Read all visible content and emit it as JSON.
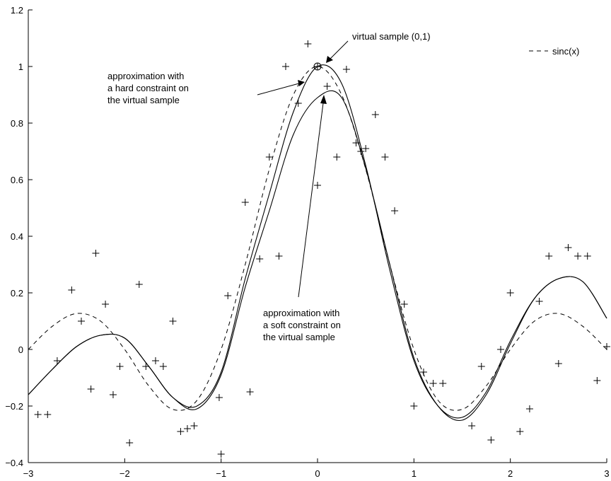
{
  "chart_data": {
    "type": "line",
    "title": "",
    "xlabel": "",
    "ylabel": "",
    "xlim": [
      -3,
      3
    ],
    "ylim": [
      -0.4,
      1.2
    ],
    "xticks": [
      -3,
      -2,
      -1,
      0,
      1,
      2,
      3
    ],
    "xtick_labels": [
      "−3",
      "−2",
      "−1",
      "0",
      "1",
      "2",
      "3"
    ],
    "yticks": [
      -0.4,
      -0.2,
      0,
      0.2,
      0.4,
      0.6,
      0.8,
      1,
      1.2
    ],
    "ytick_labels": [
      "−0.4",
      "−0.2",
      "0",
      "0.2",
      "0.4",
      "0.6",
      "0.8",
      "1",
      "1.2"
    ],
    "grid": false,
    "legend": {
      "position": "top-right",
      "label": "sinc(x)"
    },
    "series": [
      {
        "name": "sinc(x)",
        "style": "dashed",
        "x": [
          -3,
          -2.75,
          -2.5,
          -2.25,
          -2,
          -1.75,
          -1.5,
          -1.25,
          -1,
          -0.75,
          -0.5,
          -0.25,
          0,
          0.25,
          0.5,
          0.75,
          1,
          1.25,
          1.5,
          1.75,
          2,
          2.25,
          2.5,
          2.75,
          3
        ],
        "y": [
          0.0,
          0.082,
          0.127,
          0.1,
          0.0,
          -0.129,
          -0.212,
          -0.18,
          0.0,
          0.3,
          0.637,
          0.9,
          1.0,
          0.9,
          0.637,
          0.3,
          0.0,
          -0.18,
          -0.212,
          -0.129,
          0.0,
          0.1,
          0.127,
          0.082,
          0.0
        ]
      },
      {
        "style": "solid",
        "x": [
          -3,
          -2.75,
          -2.5,
          -2.25,
          -2,
          -1.75,
          -1.5,
          -1.25,
          -1,
          -0.75,
          -0.5,
          -0.25,
          0,
          0.25,
          0.5,
          0.75,
          1,
          1.25,
          1.5,
          1.75,
          2,
          2.25,
          2.5,
          2.75,
          3
        ],
        "y": [
          -0.16,
          -0.07,
          0.01,
          0.05,
          0.04,
          -0.06,
          -0.17,
          -0.2,
          -0.08,
          0.25,
          0.55,
          0.84,
          1.0,
          0.94,
          0.65,
          0.28,
          -0.04,
          -0.2,
          -0.24,
          -0.15,
          0.03,
          0.18,
          0.25,
          0.24,
          0.11
        ]
      },
      {
        "style": "solid",
        "x": [
          -3,
          -2.75,
          -2.5,
          -2.25,
          -2,
          -1.75,
          -1.5,
          -1.25,
          -1,
          -0.75,
          -0.5,
          -0.25,
          0,
          0.25,
          0.5,
          0.75,
          1,
          1.25,
          1.5,
          1.75,
          2,
          2.25,
          2.5,
          2.75,
          3
        ],
        "y": [
          -0.16,
          -0.07,
          0.01,
          0.05,
          0.04,
          -0.06,
          -0.17,
          -0.21,
          -0.09,
          0.22,
          0.49,
          0.76,
          0.89,
          0.89,
          0.64,
          0.3,
          -0.03,
          -0.2,
          -0.25,
          -0.16,
          0.02,
          0.18,
          0.25,
          0.24,
          0.11
        ]
      }
    ],
    "samples": {
      "marker": "+",
      "x": [
        -2.9,
        -2.8,
        -2.7,
        -2.55,
        -2.45,
        -2.35,
        -2.3,
        -2.2,
        -2.12,
        -2.05,
        -1.95,
        -1.85,
        -1.78,
        -1.68,
        -1.6,
        -1.5,
        -1.42,
        -1.35,
        -1.28,
        -1.02,
        -1.0,
        -0.93,
        -0.75,
        -0.7,
        -0.6,
        -0.5,
        -0.4,
        -0.33,
        -0.2,
        -0.1,
        0.0,
        0.1,
        0.2,
        0.3,
        0.4,
        0.45,
        0.5,
        0.6,
        0.7,
        0.8,
        0.9,
        1.0,
        1.1,
        1.2,
        1.3,
        1.6,
        1.7,
        1.8,
        1.9,
        2.0,
        2.1,
        2.2,
        2.3,
        2.4,
        2.5,
        2.6,
        2.7,
        2.8,
        2.9,
        3.0
      ],
      "y": [
        -0.23,
        -0.23,
        -0.04,
        0.21,
        0.1,
        -0.14,
        0.34,
        0.16,
        -0.16,
        -0.06,
        -0.33,
        0.23,
        -0.06,
        -0.04,
        -0.06,
        0.1,
        -0.29,
        -0.28,
        -0.27,
        -0.17,
        -0.37,
        0.19,
        0.52,
        -0.15,
        0.32,
        0.68,
        0.33,
        1.0,
        0.87,
        1.08,
        0.58,
        0.93,
        0.68,
        0.99,
        0.73,
        0.7,
        0.71,
        0.83,
        0.68,
        0.49,
        0.16,
        -0.2,
        -0.08,
        -0.12,
        -0.12,
        -0.27,
        -0.06,
        -0.32,
        0.0,
        0.2,
        -0.29,
        -0.21,
        0.17,
        0.33,
        -0.05,
        0.36,
        0.33,
        0.33,
        -0.11,
        0.01
      ]
    },
    "virtual_sample": {
      "x": 0,
      "y": 1,
      "marker": "circle-plus"
    },
    "annotations": [
      {
        "lines": [
          "virtual sample (0,1)"
        ],
        "points_to": [
          0,
          1
        ]
      },
      {
        "lines": [
          "approximation with",
          "a hard constraint on",
          "the virtual sample"
        ],
        "points_to": [
          -0.18,
          0.96
        ]
      },
      {
        "lines": [
          "approximation with",
          "a soft constraint on",
          "the virtual sample"
        ],
        "points_to": [
          0.0,
          0.89
        ]
      }
    ]
  }
}
